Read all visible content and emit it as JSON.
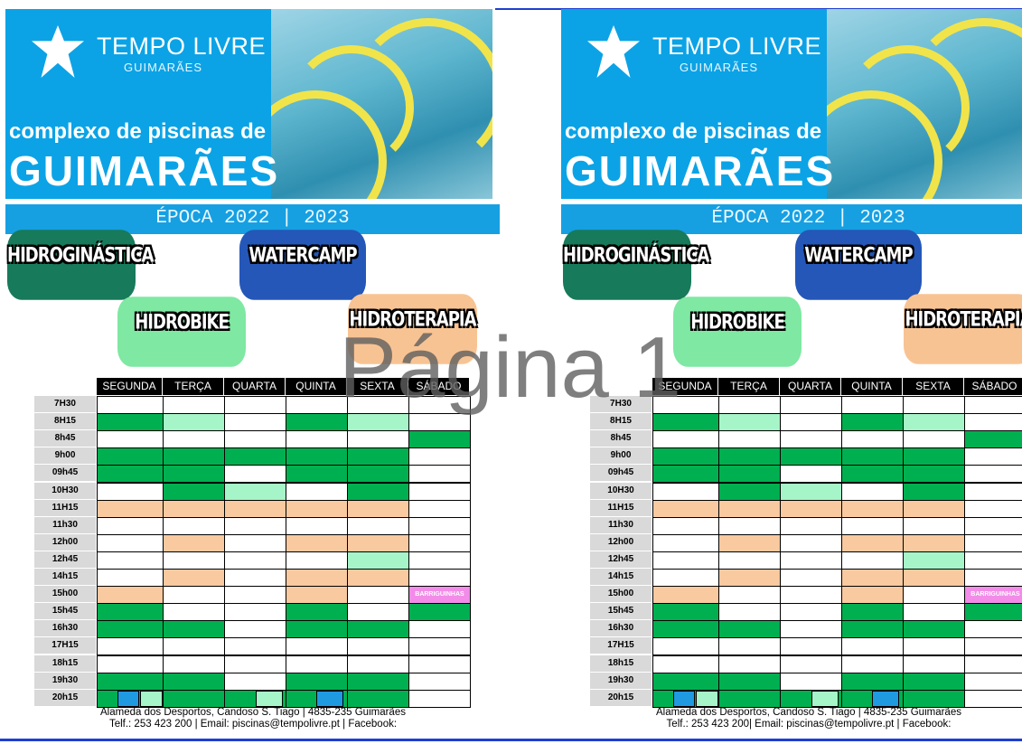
{
  "pages": [
    {
      "brand": "TEMPO LIVRE",
      "brand_sub": "GUIMARÃES",
      "headline": "complexo de piscinas de",
      "headline_big": "GUIMARÃES",
      "season": "ÉPOCA 2022 | 2023",
      "activities": [
        "HIDROGINÁSTICA",
        "WATERCAMP",
        "HIDROBIKE",
        "HIDROTERAPIA"
      ],
      "days": [
        "SEGUNDA",
        "TERÇA",
        "QUARTA",
        "QUINTA",
        "SEXTA",
        "SÁBADO"
      ],
      "times": [
        "7H30",
        "8H15",
        "8h45",
        "9h00",
        "09h45",
        "10H30",
        "11H15",
        "11h30",
        "12h00",
        "12h45",
        "14h15",
        "15h00",
        "15h45",
        "16h30",
        "17H15",
        "18h15",
        "19h30",
        "20h15"
      ],
      "special": "BARRIGUINHAS",
      "footer": [
        "Alameda dos Desportos, Candoso S. Tiago | 4835-235 Guimarães",
        "Telf.: 253 423 200  |  Email: piscinas@tempolivre.pt  |  Facebook:"
      ]
    },
    {
      "brand": "TEMPO LIVRE",
      "brand_sub": "GUIMARÃES",
      "headline": "complexo de piscinas de",
      "headline_big": "GUIMARÃES",
      "season": "ÉPOCA 2022 | 2023",
      "activities": [
        "HIDROGINÁSTICA",
        "WATERCAMP",
        "HIDROBIKE",
        "HIDROTERAPIA"
      ],
      "days": [
        "SEGUNDA",
        "TERÇA",
        "QUARTA",
        "QUINTA",
        "SEXTA",
        "SÁBADO"
      ],
      "times": [
        "7H30",
        "8H15",
        "8h45",
        "9h00",
        "09h45",
        "10H30",
        "11H15",
        "11h30",
        "12h00",
        "12h45",
        "14h15",
        "15h00",
        "15h45",
        "16h30",
        "17H15",
        "18h15",
        "19h30",
        "20h15"
      ],
      "special": "BARRIGUINHAS",
      "footer": [
        "Alameda dos Desportos, Candoso S. Tiago | 4835-235 Guimarães",
        "Telf.: 253 423 200| Email: piscinas@tempolivre.pt | Facebook:"
      ]
    }
  ],
  "watermark": "Página 1"
}
